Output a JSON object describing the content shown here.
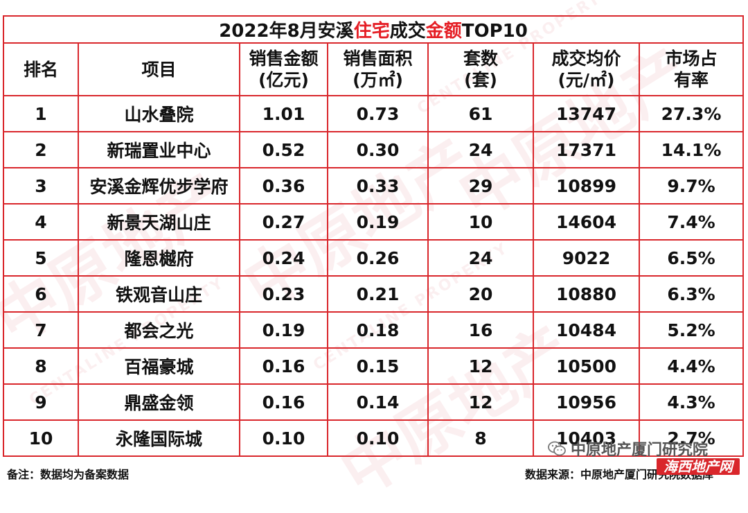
{
  "title": {
    "part1": "2022年8月安溪",
    "highlight1": "住宅",
    "part2": "成交",
    "highlight2": "金额",
    "part3": "TOP10"
  },
  "headers": {
    "rank": "排名",
    "project": "项目",
    "sales_amount_l1": "销售金额",
    "sales_amount_l2": "(亿元)",
    "sales_area_l1": "销售面积",
    "sales_area_l2": "(万㎡)",
    "units_l1": "套数",
    "units_l2": "(套)",
    "avg_price_l1": "成交均价",
    "avg_price_l2": "(元/㎡)",
    "share_l1": "市场占",
    "share_l2": "有率"
  },
  "rows": [
    {
      "rank": "1",
      "project": "山水叠院",
      "amount": "1.01",
      "area": "0.73",
      "units": "61",
      "price": "13747",
      "share": "27.3%"
    },
    {
      "rank": "2",
      "project": "新瑞置业中心",
      "amount": "0.52",
      "area": "0.30",
      "units": "24",
      "price": "17371",
      "share": "14.1%"
    },
    {
      "rank": "3",
      "project": "安溪金辉优步学府",
      "amount": "0.36",
      "area": "0.33",
      "units": "29",
      "price": "10899",
      "share": "9.7%"
    },
    {
      "rank": "4",
      "project": "新景天湖山庄",
      "amount": "0.27",
      "area": "0.19",
      "units": "10",
      "price": "14604",
      "share": "7.4%"
    },
    {
      "rank": "5",
      "project": "隆恩樾府",
      "amount": "0.24",
      "area": "0.26",
      "units": "24",
      "price": "9022",
      "share": "6.5%"
    },
    {
      "rank": "6",
      "project": "铁观音山庄",
      "amount": "0.23",
      "area": "0.21",
      "units": "20",
      "price": "10880",
      "share": "6.3%"
    },
    {
      "rank": "7",
      "project": "都会之光",
      "amount": "0.19",
      "area": "0.18",
      "units": "16",
      "price": "10484",
      "share": "5.2%"
    },
    {
      "rank": "8",
      "project": "百福豪城",
      "amount": "0.16",
      "area": "0.15",
      "units": "12",
      "price": "10500",
      "share": "4.4%"
    },
    {
      "rank": "9",
      "project": "鼎盛金领",
      "amount": "0.16",
      "area": "0.14",
      "units": "12",
      "price": "10956",
      "share": "4.3%"
    },
    {
      "rank": "10",
      "project": "永隆国际城",
      "amount": "0.10",
      "area": "0.10",
      "units": "8",
      "price": "10403",
      "share": "2.7%"
    }
  ],
  "footer": {
    "note": "备注：数据均为备案数据",
    "source": "数据来源：中原地产厦门研究院数据库"
  },
  "watermark": {
    "main": "中原地产",
    "sub": "CENTALINE PROPERTY"
  },
  "brand": {
    "name": "中原地产厦门研究院",
    "stamp": "海西地产网"
  },
  "colors": {
    "border": "#d9262b",
    "highlight": "#e51e25"
  }
}
